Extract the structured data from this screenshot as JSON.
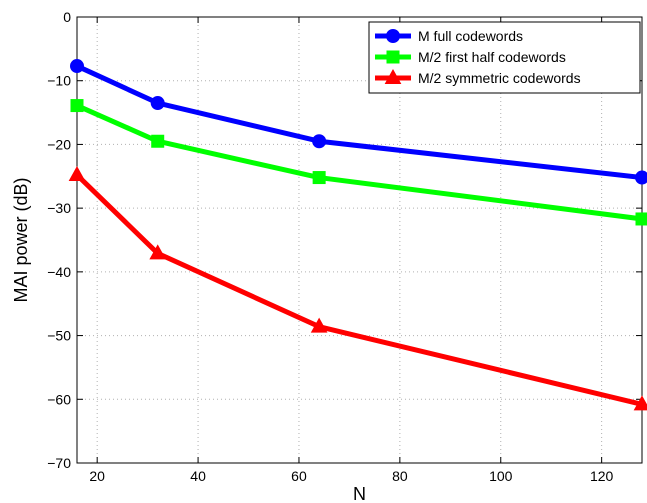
{
  "chart_data": {
    "type": "line",
    "title": "",
    "xlabel": "N",
    "ylabel": "MAI power (dB)",
    "xlim": [
      16,
      128
    ],
    "ylim": [
      -70,
      0
    ],
    "xticks": [
      20,
      40,
      60,
      80,
      100,
      120
    ],
    "yticks": [
      0,
      -10,
      -20,
      -30,
      -40,
      -50,
      -60,
      -70
    ],
    "grid": true,
    "legend_position": "top-right",
    "x": [
      16,
      32,
      64,
      128
    ],
    "series": [
      {
        "name": "M full codewords",
        "color": "#0000ff",
        "marker": "circle",
        "values": [
          -7.7,
          -13.5,
          -19.5,
          -25.2
        ]
      },
      {
        "name": "M/2 first half codewords",
        "color": "#00ff00",
        "marker": "square",
        "values": [
          -13.9,
          -19.5,
          -25.2,
          -31.7
        ]
      },
      {
        "name": "M/2 symmetric codewords",
        "color": "#ff0000",
        "marker": "triangle",
        "values": [
          -24.8,
          -37.1,
          -48.6,
          -60.8
        ]
      }
    ]
  }
}
